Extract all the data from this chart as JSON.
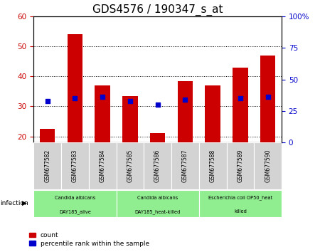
{
  "title": "GDS4576 / 190347_s_at",
  "samples": [
    "GSM677582",
    "GSM677583",
    "GSM677584",
    "GSM677585",
    "GSM677586",
    "GSM677587",
    "GSM677588",
    "GSM677589",
    "GSM677590"
  ],
  "count_values": [
    22.5,
    54.0,
    37.0,
    33.5,
    21.0,
    38.5,
    37.0,
    43.0,
    47.0
  ],
  "percentile_values": [
    32.5,
    35.0,
    36.0,
    32.5,
    30.0,
    34.0,
    null,
    35.0,
    36.0
  ],
  "ylim_left": [
    18,
    60
  ],
  "ylim_right": [
    0,
    100
  ],
  "yticks_left": [
    20,
    30,
    40,
    50,
    60
  ],
  "yticks_right": [
    0,
    25,
    50,
    75,
    100
  ],
  "yticklabels_right": [
    "0",
    "25",
    "50",
    "75",
    "100%"
  ],
  "bar_color": "#cc0000",
  "dot_color": "#0000cc",
  "groups": [
    {
      "label": "Candida albicans\nDAY185_alive",
      "start": 0,
      "end": 3,
      "color": "#90ee90"
    },
    {
      "label": "Candida albicans\nDAY185_heat-killed",
      "start": 3,
      "end": 6,
      "color": "#90ee90"
    },
    {
      "label": "Escherichia coli OP50_heat\nkilled",
      "start": 6,
      "end": 9,
      "color": "#90ee90"
    }
  ],
  "infection_label": "infection",
  "legend_count_label": "count",
  "legend_pct_label": "percentile rank within the sample",
  "tick_bg_color": "#d3d3d3",
  "plot_bg_color": "#ffffff",
  "figure_bg_color": "#ffffff",
  "bar_width": 0.55,
  "dot_size": 22,
  "title_fontsize": 11
}
